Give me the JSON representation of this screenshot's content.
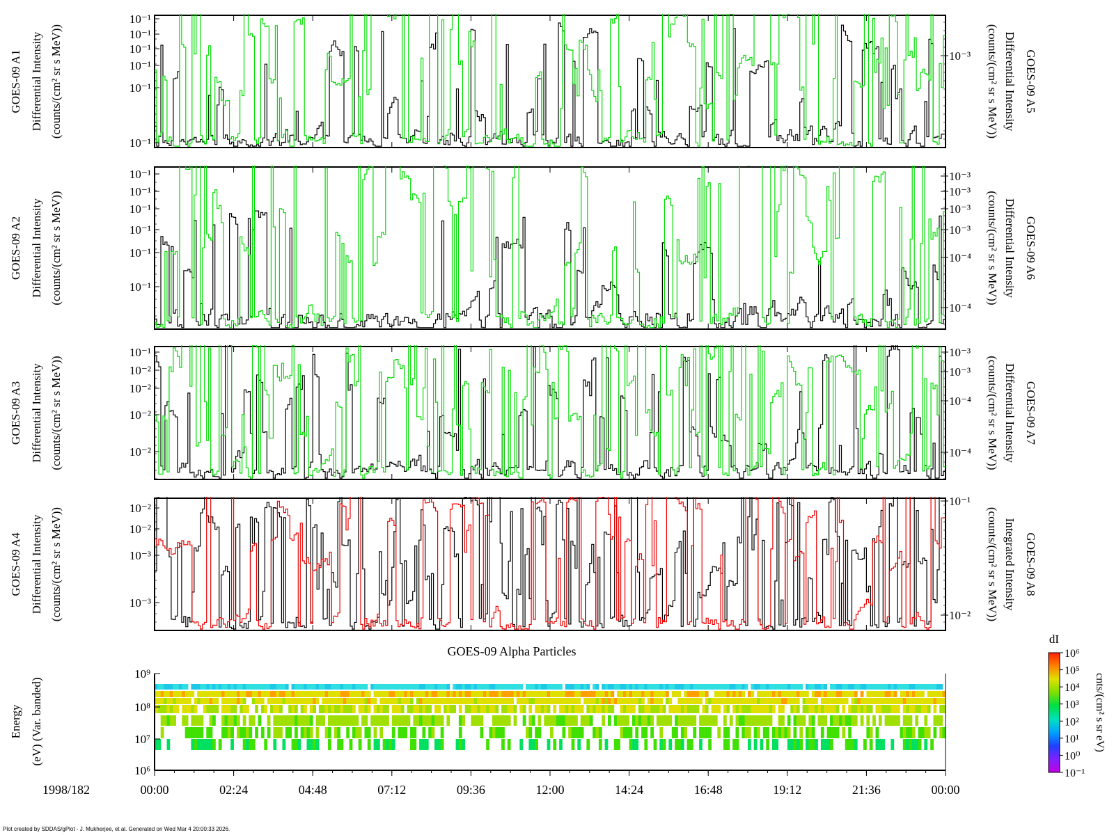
{
  "date_label": "1998/182",
  "time_ticks": [
    "00:00",
    "02:24",
    "04:48",
    "07:12",
    "09:36",
    "12:00",
    "14:24",
    "16:48",
    "19:12",
    "21:36",
    "00:00"
  ],
  "footer": "Plot created by SDDAS/gPlot - J. Mukherjee, et al.  Generated on Wed Mar 4 20:00:33 2026.",
  "spectrogram_title": "GOES-09 Alpha Particles",
  "chart_data": [
    {
      "type": "line",
      "left_label": [
        "GOES-09 A1",
        "Differential Intensity",
        "(counts/(cm² sr s MeV))"
      ],
      "right_label": [
        "GOES-09 A5",
        "Differential Intensity",
        "(counts/(cm² sr s MeV))"
      ],
      "left_ticks": [
        "10⁻¹",
        "10⁻¹",
        "10⁻¹",
        "10⁻¹",
        "10⁻¹",
        "10⁻¹"
      ],
      "right_ticks": [
        "10⁻³"
      ],
      "series": [
        {
          "color": "#000000",
          "seed": 11,
          "base": 0.15,
          "burst": 0.16,
          "hi": 0.75
        },
        {
          "color": "#00dd00",
          "seed": 21,
          "base": 0.55,
          "burst": 0.25,
          "hi": 0.97
        }
      ]
    },
    {
      "type": "line",
      "left_label": [
        "GOES-09 A2",
        "Differential Intensity",
        "(counts/(cm² sr s MeV))"
      ],
      "right_label": [
        "GOES-09 A6",
        "Differential Intensity",
        "(counts/(cm² sr s MeV))"
      ],
      "left_ticks": [
        "10⁻¹",
        "10⁻¹",
        "10⁻¹",
        "10⁻¹",
        "10⁻¹",
        "10⁻¹"
      ],
      "right_ticks": [
        "10⁻³",
        "10⁻³",
        "10⁻³",
        "10⁻³",
        "10⁻⁴",
        "10⁻⁴"
      ],
      "series": [
        {
          "color": "#000000",
          "seed": 12,
          "base": 0.06,
          "burst": 0.13,
          "hi": 0.55
        },
        {
          "color": "#00dd00",
          "seed": 22,
          "base": 0.58,
          "burst": 0.25,
          "hi": 0.97
        }
      ]
    },
    {
      "type": "line",
      "left_label": [
        "GOES-09 A3",
        "Differential Intensity",
        "(counts/(cm² sr s MeV))"
      ],
      "right_label": [
        "GOES-09 A7",
        "Differential Intensity",
        "(counts/(cm² sr s MeV))"
      ],
      "left_ticks": [
        "10⁻¹",
        "10⁻²",
        "10⁻²",
        "10⁻²",
        "10⁻²"
      ],
      "right_ticks": [
        "10⁻³",
        "10⁻³",
        "10⁻⁴",
        "10⁻⁴"
      ],
      "series": [
        {
          "color": "#000000",
          "seed": 13,
          "base": 0.2,
          "burst": 0.2,
          "hi": 0.85
        },
        {
          "color": "#00dd00",
          "seed": 23,
          "base": 0.5,
          "burst": 0.28,
          "hi": 0.95
        }
      ]
    },
    {
      "type": "line",
      "left_label": [
        "GOES-09 A4",
        "Differential Intensity",
        "(counts/(cm² sr s MeV))"
      ],
      "right_label": [
        "GOES-09 A8",
        "Integrated Intensity",
        "(counts/(cm² sr s MeV))"
      ],
      "left_ticks": [
        "10⁻²",
        "10⁻²",
        "10⁻³",
        "10⁻³"
      ],
      "right_ticks": [
        "10⁻¹",
        "10⁻²"
      ],
      "series": [
        {
          "color": "#000000",
          "seed": 14,
          "base": 0.45,
          "burst": 0.35,
          "hi": 0.9
        },
        {
          "color": "#ee0000",
          "seed": 24,
          "base": 0.72,
          "burst": 0.18,
          "hi": 0.95
        }
      ]
    },
    {
      "type": "heatmap",
      "ylabel": [
        "Energy",
        "(eV) (Var. banded)"
      ],
      "y_ticks": [
        "10⁹",
        "10⁸",
        "10⁷",
        "10⁶"
      ],
      "colorbar_title": "dI",
      "colorbar_unit": "cnts/(cm² s sr eV)",
      "colorbar_ticks": [
        "10⁶",
        "10⁵",
        "10⁴",
        "10³",
        "10²",
        "10¹",
        "10⁰",
        "10⁻¹"
      ],
      "bands": [
        {
          "level": 0.36,
          "fill": 0.97
        },
        {
          "level": 0.42,
          "fill": 0.95
        },
        {
          "level": 0.45,
          "fill": 0.93
        },
        {
          "level": 0.5,
          "fill": 0.85
        },
        {
          "level": 0.56,
          "fill": 0.75
        },
        {
          "level": 0.63,
          "fill": 0.55
        },
        {
          "level": 0.7,
          "fill": 0.5
        }
      ]
    }
  ]
}
